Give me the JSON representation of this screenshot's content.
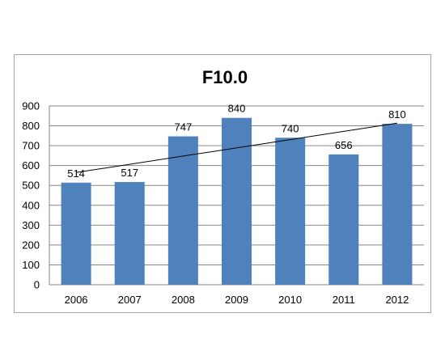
{
  "chart_data": {
    "type": "bar",
    "title": "F10.0",
    "xlabel": "",
    "ylabel": "",
    "categories": [
      "2006",
      "2007",
      "2008",
      "2009",
      "2010",
      "2011",
      "2012"
    ],
    "values": [
      514,
      517,
      747,
      840,
      740,
      656,
      810
    ],
    "data_labels": [
      "514",
      "517",
      "747",
      "840",
      "740",
      "656",
      "810"
    ],
    "ylim": [
      0,
      900
    ],
    "yticks": [
      "0",
      "100",
      "200",
      "300",
      "400",
      "500",
      "600",
      "700",
      "800",
      "900"
    ],
    "grid": true,
    "legend": "none",
    "bar_color": "#4f81bd",
    "trendline": {
      "type": "linear",
      "color": "#000000"
    }
  }
}
